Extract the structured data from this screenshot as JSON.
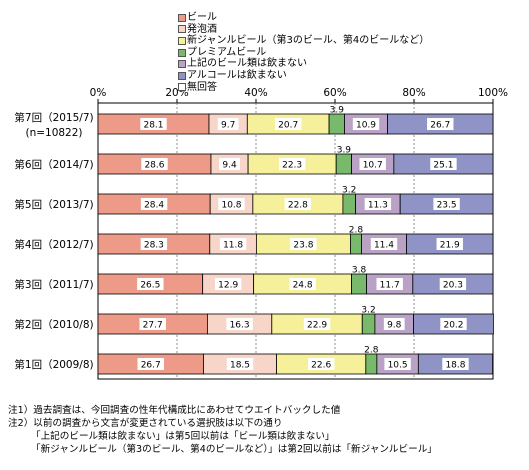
{
  "chart_data": {
    "type": "bar",
    "orientation": "horizontal",
    "stacked": true,
    "xlim": [
      0,
      100
    ],
    "x_ticks": [
      "0%",
      "20%",
      "40%",
      "60%",
      "80%",
      "100%"
    ],
    "categories": [
      {
        "label": "第7回（2015/7)",
        "sublabel": "(n=10822)"
      },
      {
        "label": "第6回（2014/7)"
      },
      {
        "label": "第5回（2013/7)"
      },
      {
        "label": "第4回（2012/7)"
      },
      {
        "label": "第3回（2011/7)"
      },
      {
        "label": "第2回（2010/8)"
      },
      {
        "label": "第1回（2009/8)"
      }
    ],
    "series": [
      {
        "name": "ビール",
        "color": "#ee9a88",
        "values": [
          28.1,
          28.6,
          28.4,
          28.3,
          26.5,
          27.7,
          26.7
        ]
      },
      {
        "name": "発泡酒",
        "color": "#f7d5c8",
        "values": [
          9.7,
          9.4,
          10.8,
          11.8,
          12.9,
          16.3,
          18.5
        ]
      },
      {
        "name": "新ジャンルビール（第3のビール、第4のビールなど）",
        "color": "#f6f09a",
        "values": [
          20.7,
          22.3,
          22.8,
          23.8,
          24.8,
          22.9,
          22.6
        ]
      },
      {
        "name": "プレミアムビール",
        "color": "#79b96b",
        "values": [
          3.9,
          3.9,
          3.2,
          2.8,
          3.8,
          3.2,
          2.8
        ]
      },
      {
        "name": "上記のビール類は飲まない",
        "color": "#b9a2c6",
        "values": [
          10.9,
          10.7,
          11.3,
          11.4,
          11.7,
          9.8,
          10.5
        ]
      },
      {
        "name": "アルコールは飲まない",
        "color": "#8f93c6",
        "values": [
          26.7,
          25.1,
          23.5,
          21.9,
          20.3,
          20.2,
          18.8
        ]
      },
      {
        "name": "無回答",
        "color": "#ffffff",
        "values": [
          0,
          0,
          0,
          0,
          0,
          0,
          0
        ]
      }
    ],
    "data_labels_shown_for_series": [
      0,
      1,
      2,
      3,
      4,
      5
    ],
    "grid": "vertical-dashed",
    "legend_position": "top"
  },
  "notes": [
    "注1）過去調査は、今回調査の性年代構成比にあわせてウエイトバックした値",
    "注2）以前の調査から文言が変更されている選択肢は以下の通り",
    "「上記のビール類は飲まない」は第5回以前は「ビール類は飲まない」",
    "「新ジャンルビール（第3のビール、第4のビールなど）」は第2回以前は「新ジャンルビール」"
  ]
}
